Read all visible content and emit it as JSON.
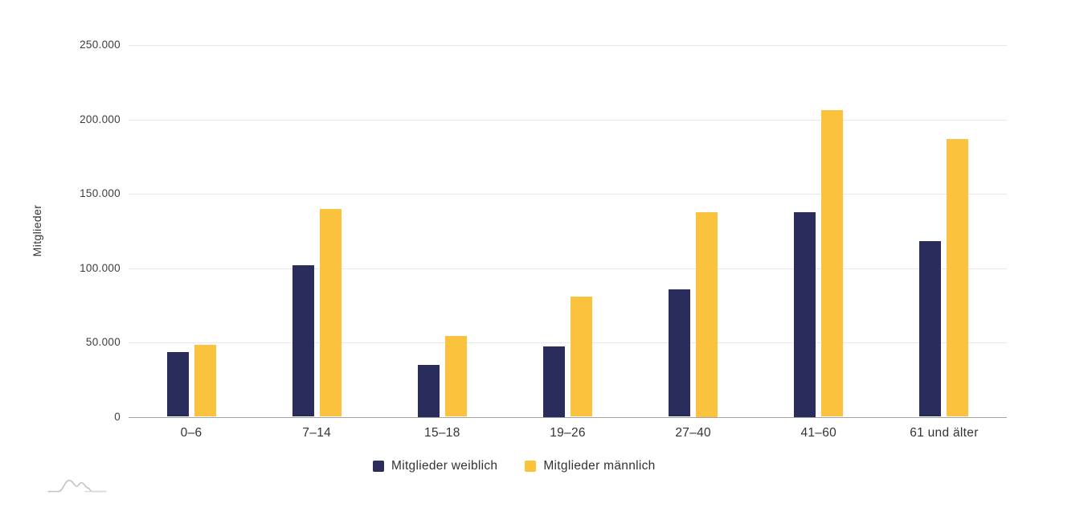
{
  "chart_data": {
    "type": "bar",
    "title": "",
    "ylabel": "Mitglieder",
    "xlabel": "",
    "categories": [
      "0–6",
      "7–14",
      "15–18",
      "19–26",
      "27–40",
      "41–60",
      "61 und älter"
    ],
    "series": [
      {
        "name": "Mitglieder weiblich",
        "color": "#2a2d5b",
        "values": [
          43500,
          102000,
          35000,
          47500,
          85500,
          137500,
          118000
        ]
      },
      {
        "name": "Mitglieder männlich",
        "color": "#fbc23d",
        "values": [
          48500,
          139500,
          54500,
          81000,
          137500,
          206000,
          187000
        ]
      }
    ],
    "ylim": [
      0,
      250000
    ],
    "y_tick_labels": [
      "0",
      "50.000",
      "100.000",
      "150.000",
      "200.000",
      "250.000"
    ],
    "grid": true,
    "legend_position": "bottom"
  },
  "colors": {
    "series_female": "#2a2d5b",
    "series_male": "#fbc23d",
    "gridline": "#e8e8e8",
    "axis_line": "#a3a3a3",
    "text": "#333333",
    "logo_gray": "#c2c2c2"
  },
  "icons": {
    "logo": "mountains-logo-icon"
  }
}
